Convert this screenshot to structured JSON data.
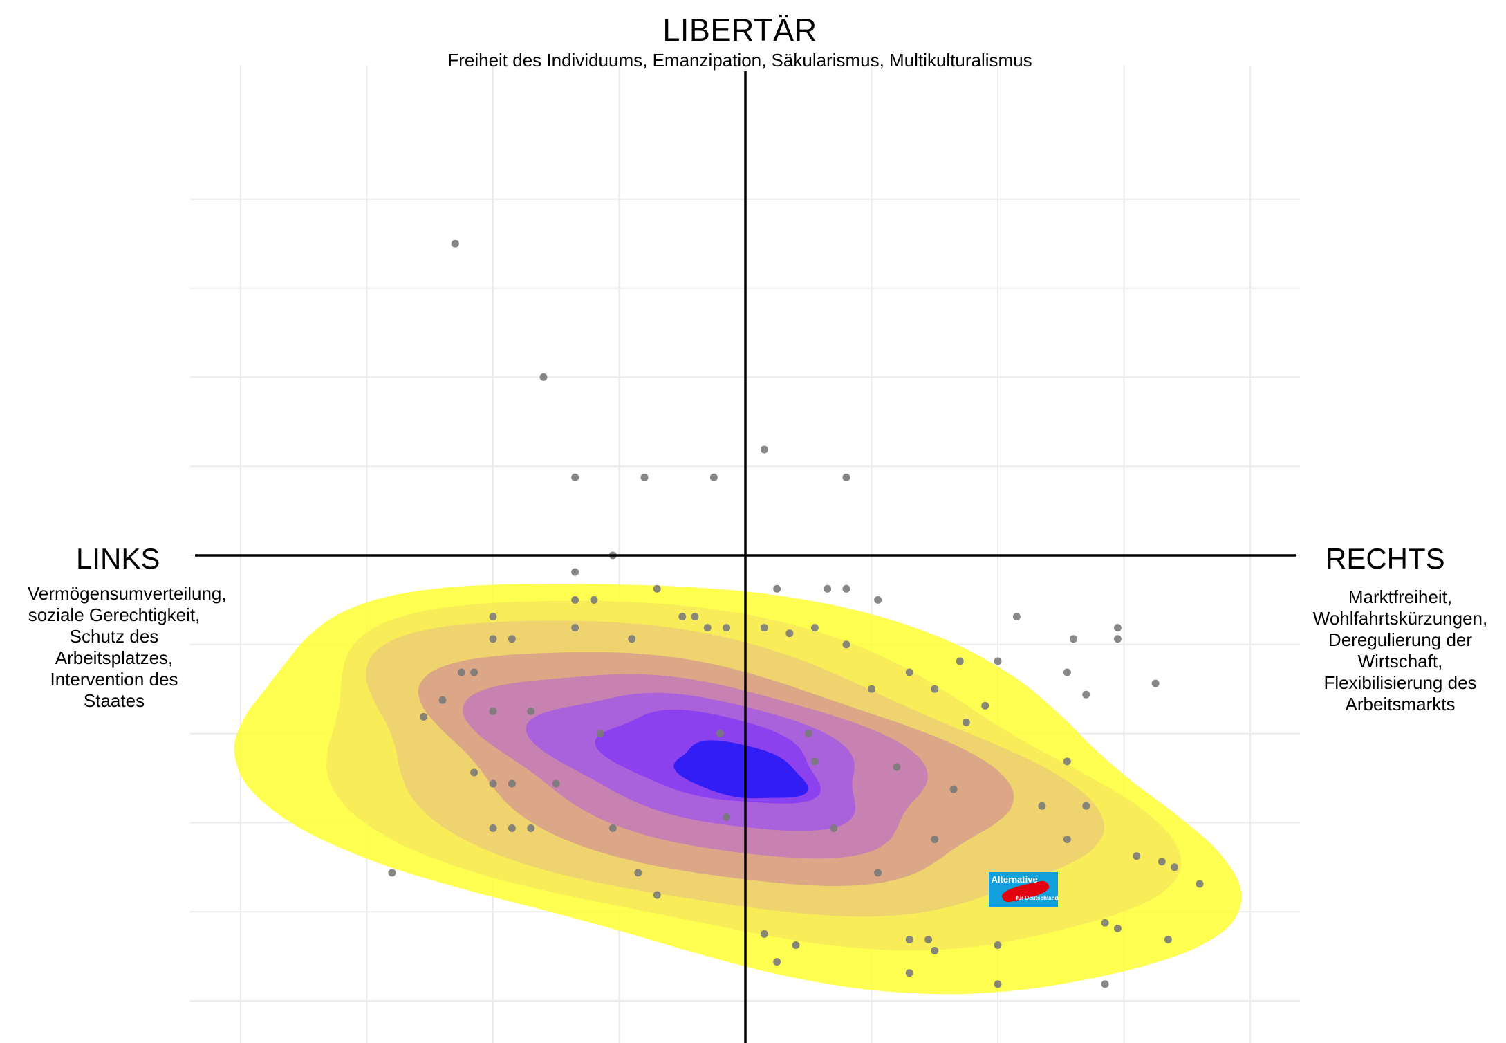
{
  "chart_data": {
    "type": "scatter",
    "title": "LIBERTÄR",
    "subtitle": "Freiheit des Individuums, Emanzipation, Säkularismus, Multikulturalismus",
    "left_label": "LINKS",
    "left_description": "Vermögensumverteilung, soziale Gerechtigkeit, Schutz des Arbeitsplatzes, Intervention des Staates",
    "right_label": "RECHTS",
    "right_description": "Marktfreiheit, Wohlfahrtskürzungen, Deregulierung der Wirtschaft, Flexibilisierung des Arbeitsmarkts",
    "xlim": [
      -4.4,
      4.4
    ],
    "ylim": [
      -4.2,
      4.0
    ],
    "grid": true,
    "overlay_annotation": "density contours of respondents",
    "marker_logo_text": [
      "Alternative",
      "für Deutschland"
    ],
    "marker_position": [
      2.2,
      -3.0
    ],
    "density_colors": [
      "#ffff33",
      "#f7ec5a",
      "#eed070",
      "#d9a389",
      "#c77fb4",
      "#a75fdf",
      "#8a3ef0",
      "#2b1af5"
    ],
    "point_color": "#7a7a7a",
    "points": [
      [
        -2.3,
        2.8
      ],
      [
        -1.6,
        1.6
      ],
      [
        0.15,
        0.95
      ],
      [
        -1.35,
        0.7
      ],
      [
        -0.8,
        0.7
      ],
      [
        -0.25,
        0.7
      ],
      [
        0.8,
        0.7
      ],
      [
        -1.35,
        -0.15
      ],
      [
        -1.05,
        0.0
      ],
      [
        -0.7,
        -0.3
      ],
      [
        -1.35,
        -0.4
      ],
      [
        -1.2,
        -0.4
      ],
      [
        -0.5,
        -0.55
      ],
      [
        -0.4,
        -0.55
      ],
      [
        -2.0,
        -0.55
      ],
      [
        -1.35,
        -0.65
      ],
      [
        -0.3,
        -0.65
      ],
      [
        -0.15,
        -0.65
      ],
      [
        0.15,
        -0.65
      ],
      [
        0.55,
        -0.65
      ],
      [
        -2.0,
        -0.75
      ],
      [
        -1.85,
        -0.75
      ],
      [
        -2.25,
        -1.05
      ],
      [
        -2.15,
        -1.05
      ],
      [
        -0.9,
        -0.75
      ],
      [
        -2.4,
        -1.3
      ],
      [
        -2.55,
        -1.45
      ],
      [
        -2.0,
        -1.4
      ],
      [
        -1.7,
        -1.4
      ],
      [
        -0.2,
        -1.6
      ],
      [
        0.5,
        -1.6
      ],
      [
        -2.15,
        -1.95
      ],
      [
        -2.0,
        -2.05
      ],
      [
        -1.85,
        -2.05
      ],
      [
        -2.8,
        -2.85
      ],
      [
        -2.0,
        -2.45
      ],
      [
        -1.85,
        -2.45
      ],
      [
        -1.7,
        -2.45
      ],
      [
        0.25,
        -0.3
      ],
      [
        0.65,
        -0.3
      ],
      [
        0.8,
        -0.3
      ],
      [
        1.05,
        -0.4
      ],
      [
        2.15,
        -0.55
      ],
      [
        0.35,
        -0.7
      ],
      [
        0.8,
        -0.8
      ],
      [
        1.7,
        -0.95
      ],
      [
        2.0,
        -0.95
      ],
      [
        2.6,
        -0.75
      ],
      [
        2.95,
        -0.65
      ],
      [
        2.95,
        -0.75
      ],
      [
        2.55,
        -1.05
      ],
      [
        3.25,
        -1.15
      ],
      [
        2.7,
        -1.25
      ],
      [
        1.3,
        -1.05
      ],
      [
        1.9,
        -1.35
      ],
      [
        1.75,
        -1.5
      ],
      [
        2.55,
        -1.85
      ],
      [
        2.35,
        -2.25
      ],
      [
        2.7,
        -2.25
      ],
      [
        2.55,
        -2.55
      ],
      [
        3.1,
        -2.7
      ],
      [
        3.3,
        -2.75
      ],
      [
        3.4,
        -2.8
      ],
      [
        3.6,
        -2.95
      ],
      [
        2.85,
        -3.3
      ],
      [
        2.95,
        -3.35
      ],
      [
        3.35,
        -3.45
      ],
      [
        0.15,
        -3.4
      ],
      [
        0.4,
        -3.5
      ],
      [
        0.25,
        -3.65
      ],
      [
        1.3,
        -3.75
      ],
      [
        2.0,
        -3.5
      ],
      [
        2.0,
        -3.85
      ],
      [
        2.85,
        -3.85
      ],
      [
        1.3,
        -3.45
      ],
      [
        1.45,
        -3.45
      ],
      [
        1.5,
        -3.55
      ],
      [
        -0.15,
        -2.35
      ],
      [
        0.7,
        -2.45
      ],
      [
        1.05,
        -2.85
      ],
      [
        1.5,
        -2.55
      ],
      [
        1.65,
        -2.1
      ],
      [
        1.2,
        -1.9
      ],
      [
        -0.85,
        -2.85
      ],
      [
        -0.7,
        -3.05
      ],
      [
        -1.05,
        -2.45
      ],
      [
        -1.5,
        -2.05
      ],
      [
        -1.15,
        -1.6
      ],
      [
        1.0,
        -1.2
      ],
      [
        1.5,
        -1.2
      ],
      [
        0.55,
        -1.85
      ]
    ]
  }
}
